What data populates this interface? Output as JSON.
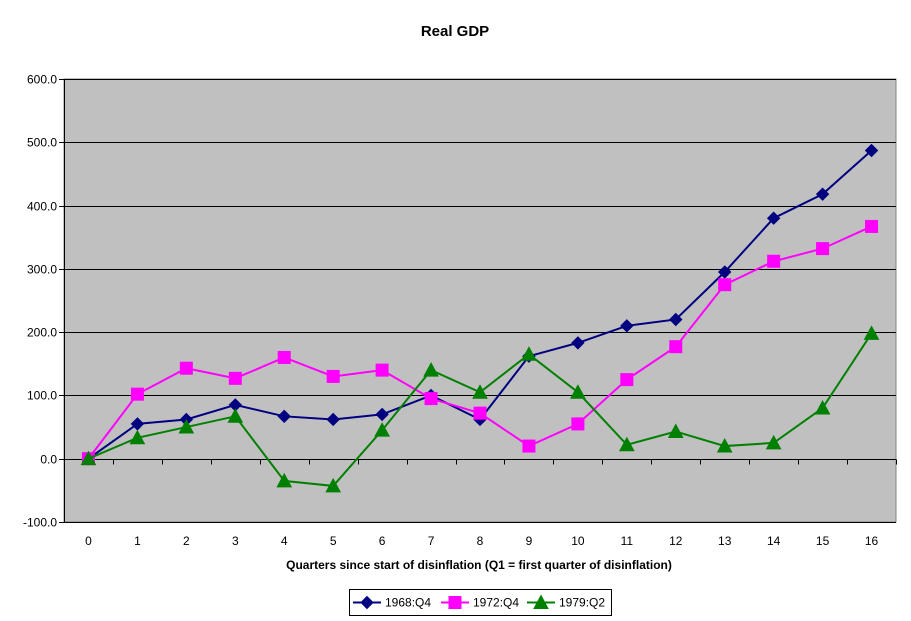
{
  "chart_data": {
    "type": "line",
    "title": "Real GDP",
    "xlabel": "Quarters since start of disinflation (Q1 = first quarter of disinflation)",
    "ylabel": "",
    "x": [
      0,
      1,
      2,
      3,
      4,
      5,
      6,
      7,
      8,
      9,
      10,
      11,
      12,
      13,
      14,
      15,
      16
    ],
    "ylim": [
      -100,
      600
    ],
    "yticks": [
      -100,
      0,
      100,
      200,
      300,
      400,
      500,
      600
    ],
    "ytick_labels": [
      "-100.0",
      "0.0",
      "100.0",
      "200.0",
      "300.0",
      "400.0",
      "500.0",
      "600.0"
    ],
    "xtick_labels": [
      "0",
      "1",
      "2",
      "3",
      "4",
      "5",
      "6",
      "7",
      "8",
      "9",
      "10",
      "11",
      "12",
      "13",
      "14",
      "15",
      "16"
    ],
    "grid": true,
    "plot_background": "#c0c0c0",
    "legend_position": "bottom-center",
    "series": [
      {
        "name": "1968:Q4",
        "color": "#000080",
        "marker": "diamond",
        "values": [
          0,
          55,
          62,
          85,
          67,
          62,
          70,
          100,
          62,
          162,
          183,
          210,
          220,
          295,
          380,
          418,
          487
        ]
      },
      {
        "name": "1972:Q4",
        "color": "#ff00ff",
        "marker": "square",
        "values": [
          0,
          102,
          143,
          127,
          160,
          130,
          140,
          95,
          72,
          20,
          55,
          125,
          177,
          275,
          312,
          332,
          367
        ]
      },
      {
        "name": "1979:Q2",
        "color": "#008000",
        "marker": "triangle",
        "values": [
          0,
          33,
          50,
          67,
          -35,
          -43,
          45,
          140,
          105,
          165,
          105,
          22,
          43,
          20,
          25,
          80,
          198
        ]
      }
    ]
  }
}
